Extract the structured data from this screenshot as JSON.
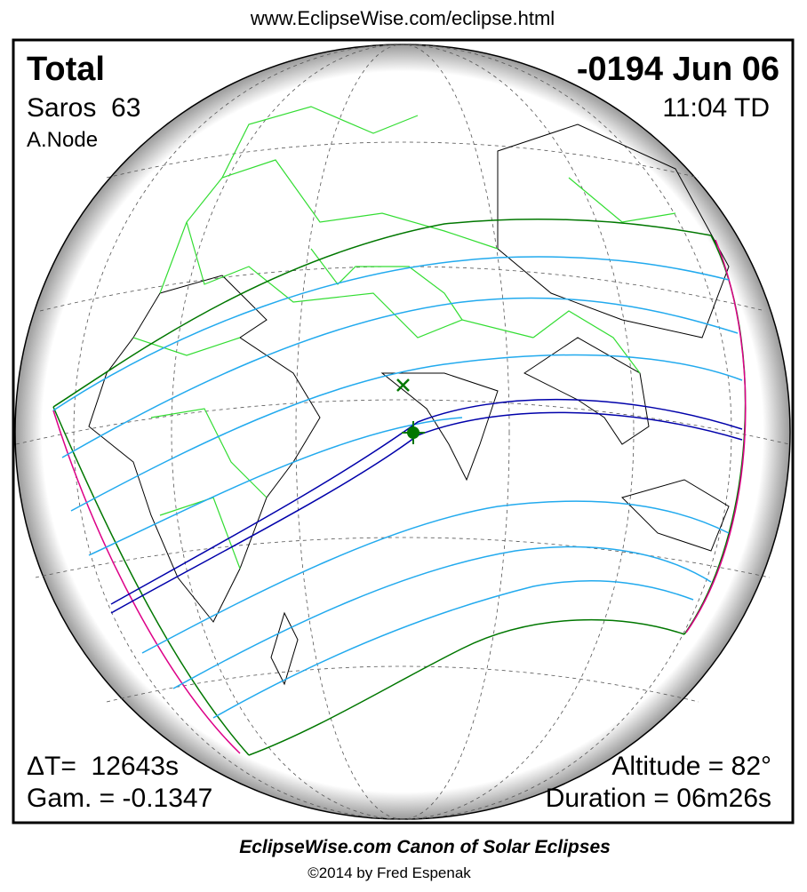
{
  "header": {
    "url": "www.EclipseWise.com/eclipse.html"
  },
  "eclipse": {
    "type": "Total",
    "date": "-0194 Jun 06",
    "saros": "Saros  63",
    "time": "11:04 TD",
    "node": "A.Node",
    "delta_t": "ΔT=  12643s",
    "gamma": "Gam. = -0.1347",
    "altitude": "Altitude = 82°",
    "duration": "Duration = 06m26s"
  },
  "footer": {
    "title": "EclipseWise.com Canon of Solar Eclipses",
    "credit": "©2014 by Fred Espenak"
  }
}
